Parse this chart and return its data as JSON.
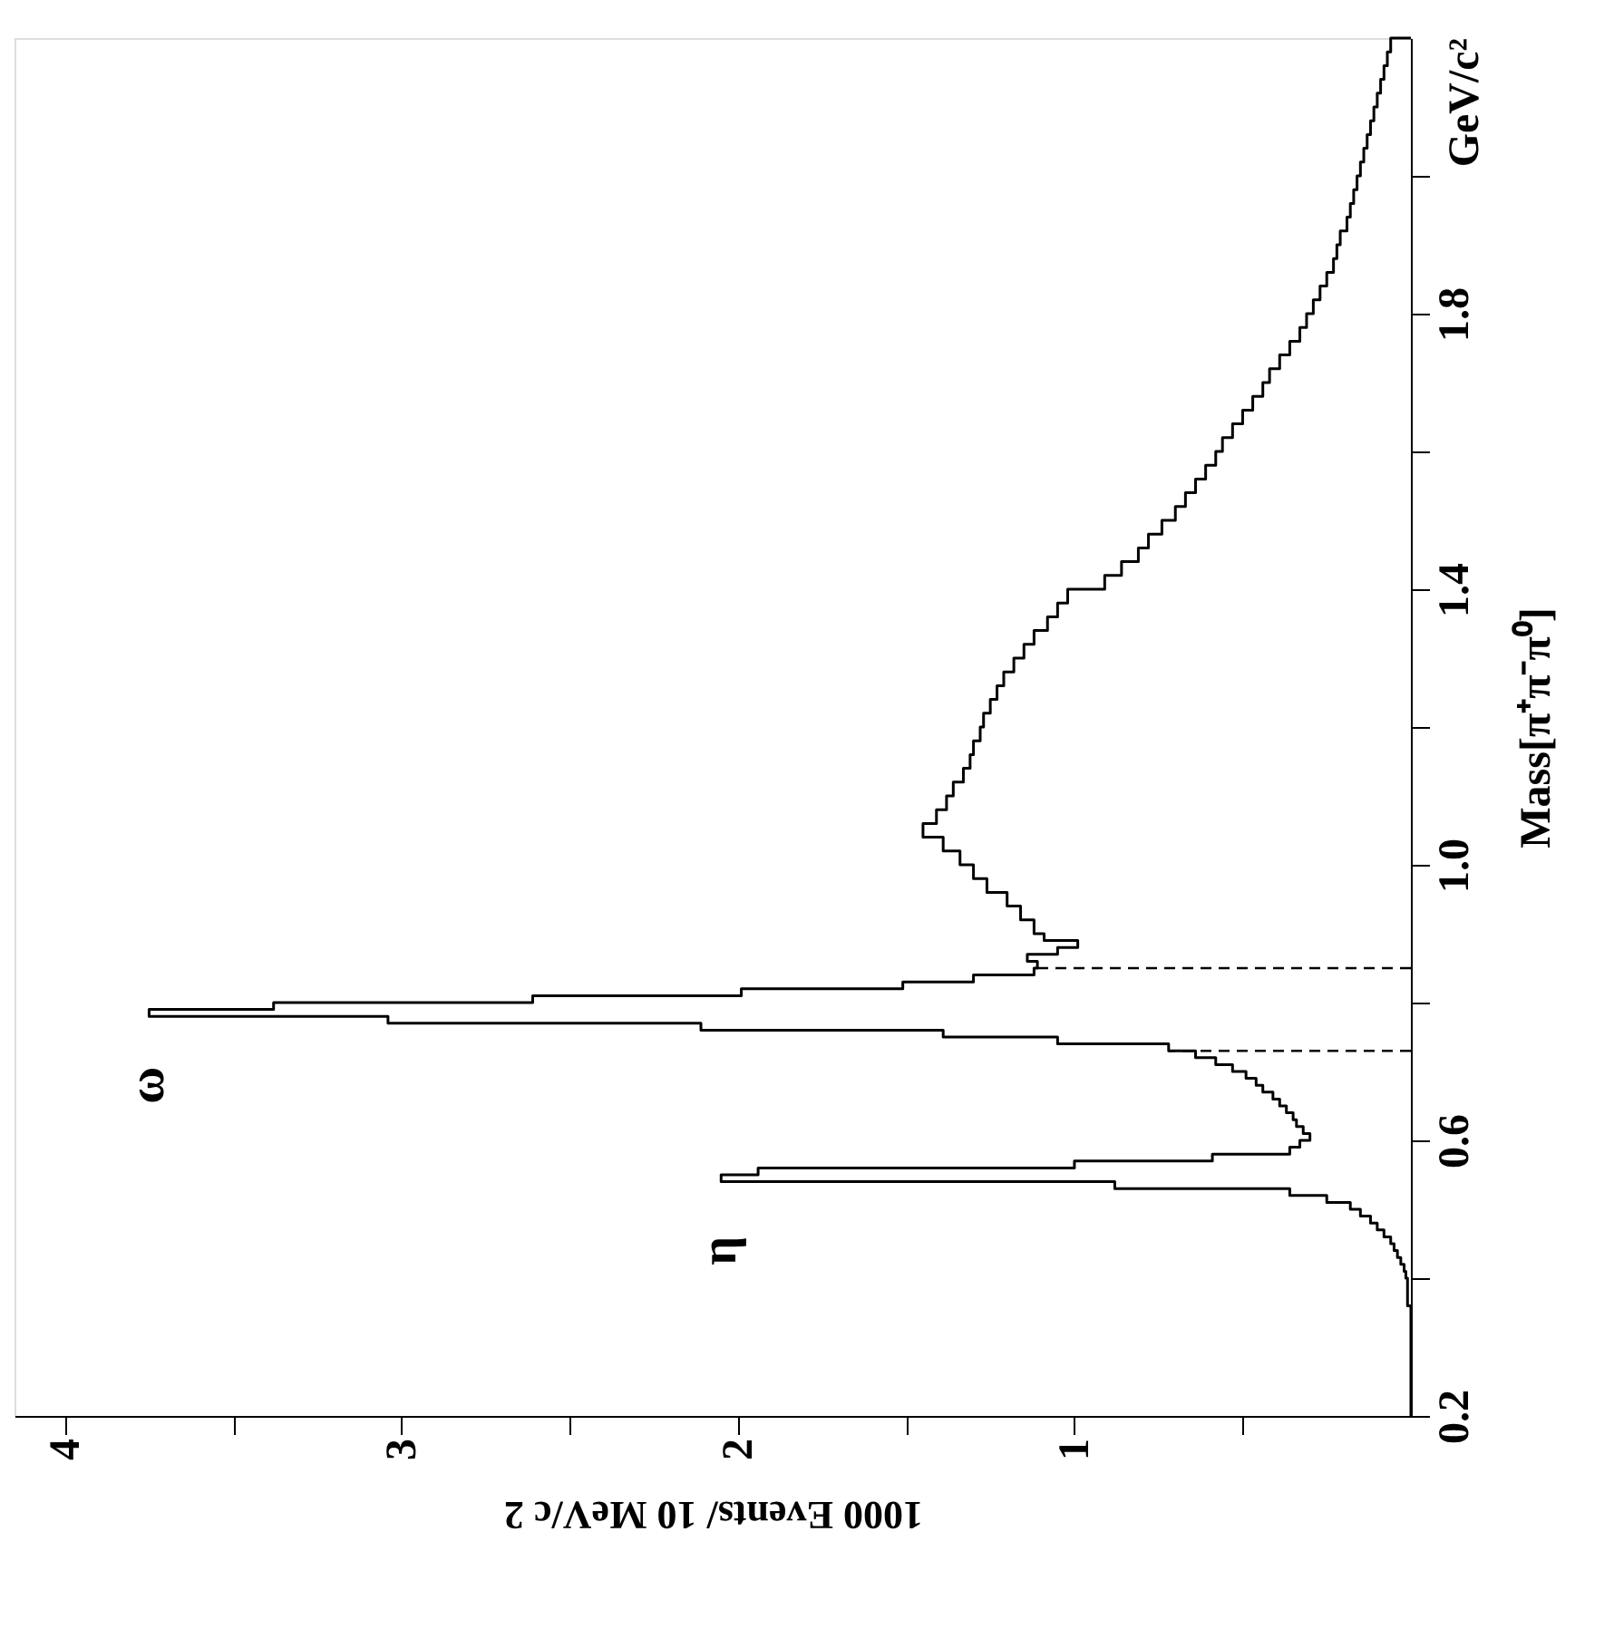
{
  "chart_data": {
    "type": "histogram",
    "orientation": "horizontal",
    "bins": [
      0.2,
      0.22,
      0.24,
      0.26,
      0.28,
      0.3,
      0.32,
      0.34,
      0.36,
      0.38,
      0.4,
      0.41,
      0.42,
      0.43,
      0.44,
      0.45,
      0.46,
      0.47,
      0.48,
      0.49,
      0.5,
      0.51,
      0.52,
      0.53,
      0.54,
      0.55,
      0.56,
      0.57,
      0.58,
      0.59,
      0.6,
      0.61,
      0.62,
      0.63,
      0.64,
      0.65,
      0.66,
      0.67,
      0.68,
      0.69,
      0.7,
      0.71,
      0.72,
      0.73,
      0.74,
      0.75,
      0.76,
      0.77,
      0.78,
      0.79,
      0.8,
      0.81,
      0.82,
      0.83,
      0.84,
      0.85,
      0.86,
      0.87,
      0.88,
      0.89,
      0.9,
      0.92,
      0.94,
      0.96,
      0.98,
      1.0,
      1.02,
      1.04,
      1.06,
      1.08,
      1.1,
      1.12,
      1.14,
      1.16,
      1.18,
      1.2,
      1.22,
      1.24,
      1.26,
      1.28,
      1.3,
      1.32,
      1.34,
      1.36,
      1.38,
      1.4,
      1.42,
      1.44,
      1.46,
      1.48,
      1.5,
      1.52,
      1.54,
      1.56,
      1.58,
      1.6,
      1.62,
      1.64,
      1.66,
      1.68,
      1.7,
      1.72,
      1.74,
      1.76,
      1.78,
      1.8,
      1.82,
      1.84,
      1.86,
      1.88,
      1.9,
      1.92,
      1.94,
      1.96,
      1.98,
      2.0,
      2.02,
      2.04,
      2.06,
      2.08,
      2.1,
      2.12,
      2.14,
      2.16,
      2.18,
      2.2
    ],
    "values": [
      0,
      0,
      0,
      0,
      0,
      0,
      0,
      0,
      0.01,
      0.01,
      0.015,
      0.02,
      0.03,
      0.04,
      0.05,
      0.06,
      0.08,
      0.1,
      0.12,
      0.15,
      0.18,
      0.25,
      0.36,
      0.88,
      2.05,
      1.94,
      1.0,
      0.59,
      0.36,
      0.33,
      0.3,
      0.32,
      0.34,
      0.35,
      0.37,
      0.39,
      0.41,
      0.44,
      0.46,
      0.49,
      0.53,
      0.58,
      0.64,
      0.72,
      1.05,
      1.39,
      2.11,
      3.04,
      3.75,
      3.38,
      2.61,
      1.99,
      1.51,
      1.3,
      1.12,
      1.11,
      1.14,
      1.05,
      0.99,
      1.09,
      1.12,
      1.16,
      1.2,
      1.26,
      1.3,
      1.34,
      1.39,
      1.45,
      1.41,
      1.38,
      1.36,
      1.33,
      1.31,
      1.3,
      1.28,
      1.27,
      1.25,
      1.23,
      1.21,
      1.18,
      1.15,
      1.12,
      1.08,
      1.05,
      1.02,
      0.91,
      0.86,
      0.81,
      0.78,
      0.74,
      0.7,
      0.67,
      0.64,
      0.61,
      0.58,
      0.56,
      0.53,
      0.5,
      0.47,
      0.44,
      0.42,
      0.39,
      0.36,
      0.33,
      0.31,
      0.29,
      0.27,
      0.25,
      0.23,
      0.22,
      0.21,
      0.19,
      0.18,
      0.17,
      0.16,
      0.15,
      0.14,
      0.13,
      0.12,
      0.11,
      0.1,
      0.09,
      0.08,
      0.07,
      0.06
    ],
    "color": "#000000",
    "xlabel": "1000 Events/ 10 MeV/c 2",
    "ylabel": "Mass[π⁺π⁻π⁰]",
    "xlim": [
      4.15,
      0
    ],
    "ylim": [
      0.2,
      2.2
    ],
    "xticks": [
      {
        "value": 0.5,
        "label": null
      },
      1,
      {
        "value": 1.5,
        "label": null
      },
      2,
      {
        "value": 2.5,
        "label": null
      },
      3,
      {
        "value": 3.5,
        "label": null
      },
      4
    ],
    "yticks": [
      0.2,
      {
        "value": 0.4,
        "label": null
      },
      0.6,
      {
        "value": 0.8,
        "label": null
      },
      {
        "value": 1.0,
        "label": "1.0"
      },
      {
        "value": 1.2,
        "label": null
      },
      1.4,
      {
        "value": 1.6,
        "label": null
      },
      1.8,
      {
        "value": 2.0,
        "label": null
      }
    ],
    "ref_lines": [
      {
        "axis": "y",
        "value": 0.73,
        "line_style": "dashed"
      },
      {
        "axis": "y",
        "value": 0.85,
        "line_style": "dashed"
      }
    ],
    "annotations": [
      {
        "text": "η",
        "x": 2.05,
        "y": 0.545
      },
      {
        "text": "ω",
        "x": 3.75,
        "y": 0.785
      },
      "GeV/c²"
    ]
  }
}
